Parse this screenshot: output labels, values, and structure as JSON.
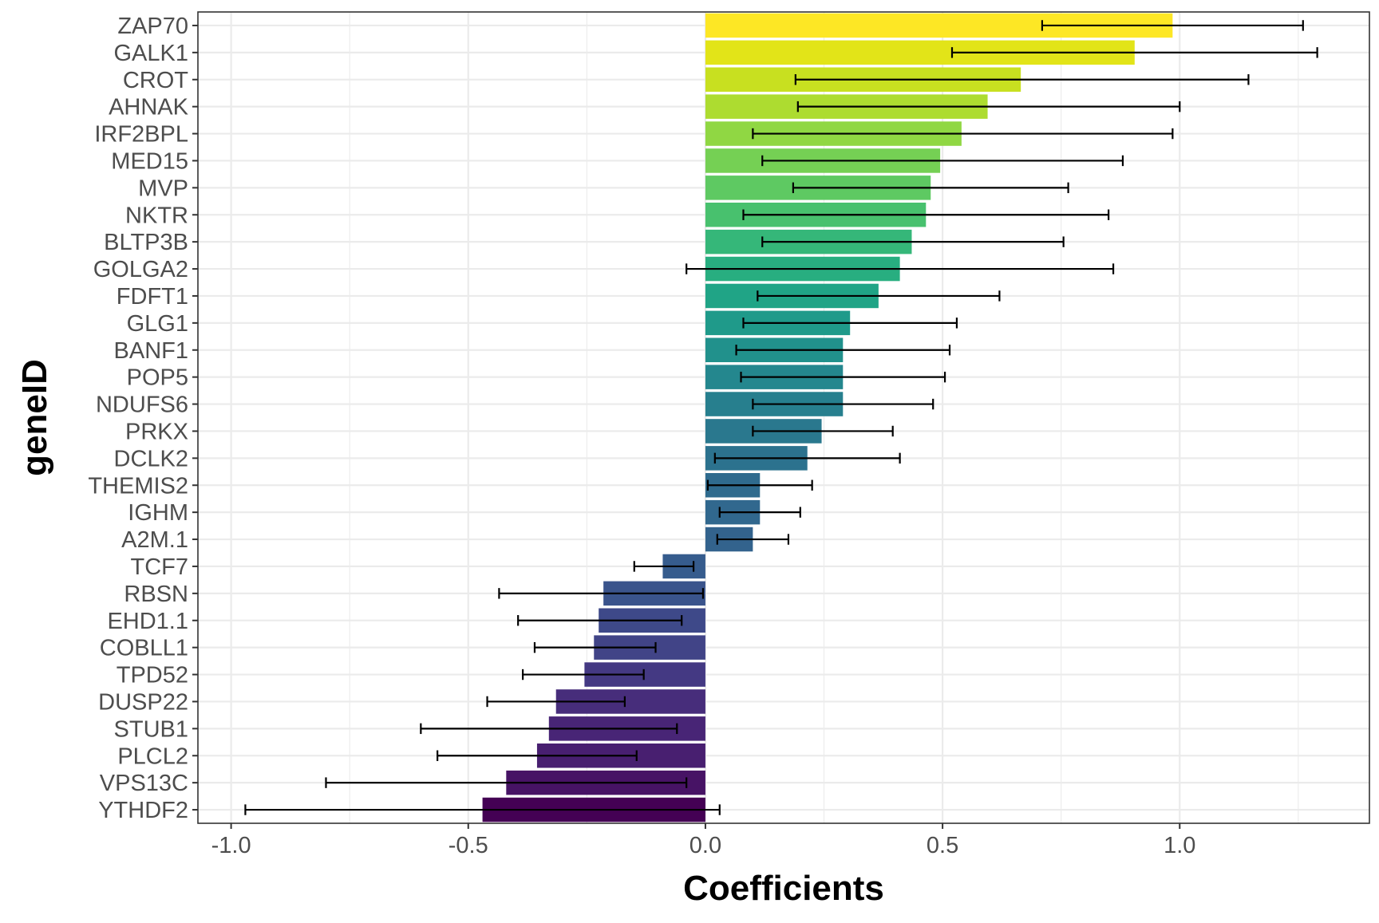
{
  "chart_data": {
    "type": "bar",
    "orientation": "horizontal",
    "xlabel": "Coefficients",
    "ylabel": "geneID",
    "xlim": [
      -1.07,
      1.4
    ],
    "x_ticks": [
      -1.0,
      -0.5,
      0.0,
      0.5,
      1.0
    ],
    "x_tick_labels": [
      "-1.0",
      "-0.5",
      "0.0",
      "0.5",
      "1.0"
    ],
    "grid": true,
    "legend": "none",
    "color_scale": "viridis",
    "categories": [
      "ZAP70",
      "GALK1",
      "CROT",
      "AHNAK",
      "IRF2BPL",
      "MED15",
      "MVP",
      "NKTR",
      "BLTP3B",
      "GOLGA2",
      "FDFT1",
      "GLG1",
      "BANF1",
      "POP5",
      "NDUFS6",
      "PRKX",
      "DCLK2",
      "THEMIS2",
      "IGHM",
      "A2M.1",
      "TCF7",
      "RBSN",
      "EHD1.1",
      "COBLL1",
      "TPD52",
      "DUSP22",
      "STUB1",
      "PLCL2",
      "VPS13C",
      "YTHDF2"
    ],
    "values": [
      0.985,
      0.905,
      0.665,
      0.595,
      0.54,
      0.495,
      0.475,
      0.465,
      0.435,
      0.41,
      0.365,
      0.305,
      0.29,
      0.29,
      0.29,
      0.245,
      0.215,
      0.115,
      0.115,
      0.1,
      -0.09,
      -0.215,
      -0.225,
      -0.235,
      -0.255,
      -0.315,
      -0.33,
      -0.355,
      -0.42,
      -0.47
    ],
    "error_low": [
      0.71,
      0.52,
      0.19,
      0.195,
      0.1,
      0.12,
      0.185,
      0.08,
      0.12,
      -0.04,
      0.11,
      0.08,
      0.065,
      0.075,
      0.1,
      0.1,
      0.02,
      0.005,
      0.03,
      0.025,
      -0.15,
      -0.435,
      -0.395,
      -0.36,
      -0.385,
      -0.46,
      -0.6,
      -0.565,
      -0.8,
      -0.97
    ],
    "error_high": [
      1.26,
      1.29,
      1.145,
      1.0,
      0.985,
      0.88,
      0.765,
      0.85,
      0.755,
      0.86,
      0.62,
      0.53,
      0.515,
      0.505,
      0.48,
      0.395,
      0.41,
      0.225,
      0.2,
      0.175,
      -0.025,
      -0.005,
      -0.05,
      -0.105,
      -0.13,
      -0.17,
      -0.06,
      -0.145,
      -0.04,
      0.03
    ],
    "colors": [
      "#fde725",
      "#e2e418",
      "#c8e020",
      "#addc30",
      "#90d743",
      "#75d054",
      "#5ec962",
      "#48c16e",
      "#35b779",
      "#28ae80",
      "#20a486",
      "#1f9a8a",
      "#21918c",
      "#24878e",
      "#277f8e",
      "#2a788e",
      "#2c728e",
      "#2f6b8e",
      "#31688e",
      "#33638d",
      "#365c8d",
      "#3a548c",
      "#3e4989",
      "#414487",
      "#443983",
      "#472d7b",
      "#482576",
      "#481f70",
      "#471365",
      "#440154"
    ]
  }
}
